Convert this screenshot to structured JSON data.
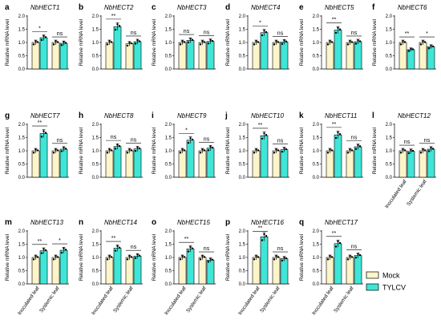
{
  "chart_data": {
    "type": "bar",
    "series": [
      {
        "name": "Mock",
        "color": "#fdf5c9"
      },
      {
        "name": "TYLCV",
        "color": "#3fe6d7"
      }
    ],
    "categories": [
      "Inoculated leaf",
      "Systemic leaf"
    ],
    "ylabel": "Relative mRNA level",
    "ylim": [
      0,
      2.0
    ],
    "yticks": [
      "0.0",
      "0.5",
      "1.0",
      "1.5",
      "2.0"
    ],
    "panels": [
      {
        "letter": "a",
        "gene": "NbHECT1",
        "mock": [
          1.0,
          1.0
        ],
        "tylcv": [
          1.18,
          0.97
        ],
        "sig": [
          "*",
          "ns"
        ]
      },
      {
        "letter": "b",
        "gene": "NbHECT2",
        "mock": [
          1.0,
          0.95
        ],
        "tylcv": [
          1.6,
          1.03
        ],
        "sig": [
          "**",
          "ns"
        ]
      },
      {
        "letter": "c",
        "gene": "NbHECT3",
        "mock": [
          1.0,
          1.0
        ],
        "tylcv": [
          1.08,
          1.04
        ],
        "sig": [
          "ns",
          "ns"
        ]
      },
      {
        "letter": "d",
        "gene": "NbHECT4",
        "mock": [
          1.0,
          1.0
        ],
        "tylcv": [
          1.37,
          1.02
        ],
        "sig": [
          "*",
          "ns"
        ]
      },
      {
        "letter": "e",
        "gene": "NbHECT5",
        "mock": [
          1.0,
          1.0
        ],
        "tylcv": [
          1.47,
          1.03
        ],
        "sig": [
          "**",
          "ns"
        ]
      },
      {
        "letter": "f",
        "gene": "NbHECT6",
        "mock": [
          1.0,
          1.0
        ],
        "tylcv": [
          0.73,
          0.84
        ],
        "sig": [
          "**",
          "*"
        ]
      },
      {
        "letter": "g",
        "gene": "NbHECT7",
        "mock": [
          1.0,
          1.0
        ],
        "tylcv": [
          1.65,
          1.06
        ],
        "sig": [
          "**",
          "ns"
        ]
      },
      {
        "letter": "h",
        "gene": "NbHECT8",
        "mock": [
          1.0,
          1.0
        ],
        "tylcv": [
          1.16,
          1.07
        ],
        "sig": [
          "ns",
          "ns"
        ]
      },
      {
        "letter": "i",
        "gene": "NbHECT9",
        "mock": [
          1.0,
          1.0
        ],
        "tylcv": [
          1.4,
          1.1
        ],
        "sig": [
          "*",
          "ns"
        ]
      },
      {
        "letter": "j",
        "gene": "NbHECT10",
        "mock": [
          1.0,
          1.0
        ],
        "tylcv": [
          1.57,
          1.04
        ],
        "sig": [
          "**",
          "ns"
        ]
      },
      {
        "letter": "k",
        "gene": "NbHECT11",
        "mock": [
          1.0,
          1.0
        ],
        "tylcv": [
          1.6,
          1.15
        ],
        "sig": [
          "**",
          "ns"
        ]
      },
      {
        "letter": "l",
        "gene": "NbHECT12",
        "mock": [
          1.0,
          1.0
        ],
        "tylcv": [
          0.98,
          1.06
        ],
        "sig": [
          "ns",
          "ns"
        ]
      },
      {
        "letter": "m",
        "gene": "NbHECT13",
        "mock": [
          1.0,
          1.0
        ],
        "tylcv": [
          1.25,
          1.27
        ],
        "sig": [
          "**",
          "*"
        ]
      },
      {
        "letter": "n",
        "gene": "NbHECT14",
        "mock": [
          1.0,
          1.0
        ],
        "tylcv": [
          1.35,
          1.05
        ],
        "sig": [
          "**",
          "ns"
        ]
      },
      {
        "letter": "o",
        "gene": "NbHECT15",
        "mock": [
          1.0,
          1.0
        ],
        "tylcv": [
          1.32,
          0.9
        ],
        "sig": [
          "**",
          "ns"
        ]
      },
      {
        "letter": "p",
        "gene": "NbHECT16",
        "mock": [
          1.0,
          1.0
        ],
        "tylcv": [
          1.78,
          0.95
        ],
        "sig": [
          "**",
          "ns"
        ]
      },
      {
        "letter": "q",
        "gene": "NbHECT17",
        "mock": [
          1.0,
          1.0
        ],
        "tylcv": [
          1.52,
          1.07
        ],
        "sig": [
          "**",
          "ns"
        ]
      }
    ]
  }
}
